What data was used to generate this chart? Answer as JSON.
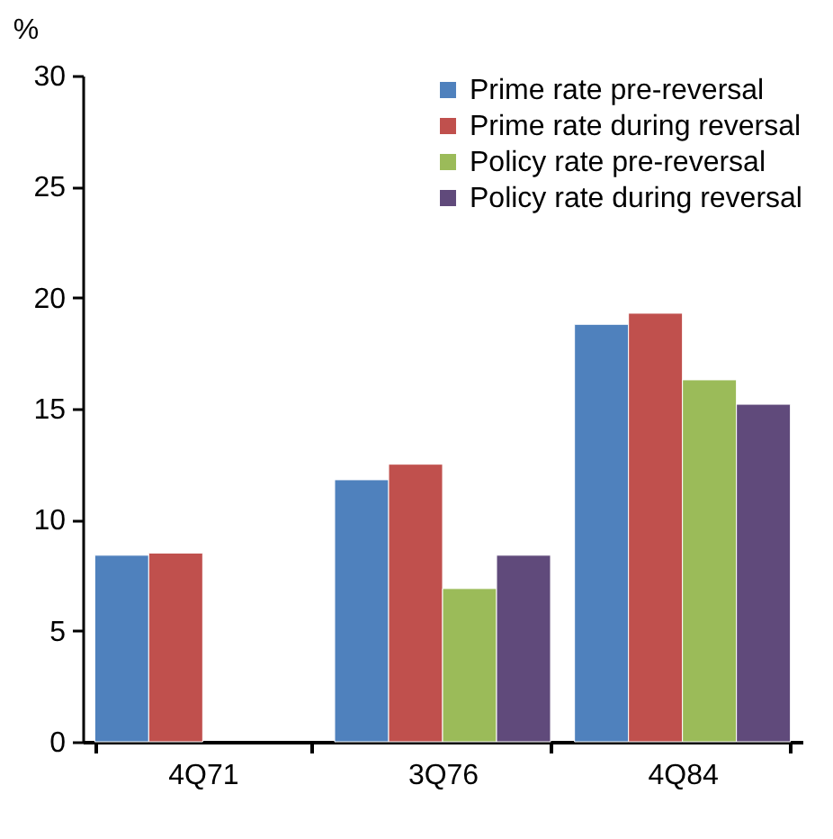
{
  "chart_data": {
    "type": "bar",
    "ylabel": "%",
    "categories": [
      "4Q71",
      "3Q76",
      "4Q84"
    ],
    "series": [
      {
        "name": "Prime rate pre-reversal",
        "color": "#4f81bd",
        "values": [
          8.4,
          11.8,
          18.8
        ]
      },
      {
        "name": "Prime rate during reversal",
        "color": "#c0504d",
        "values": [
          8.5,
          12.5,
          19.3
        ]
      },
      {
        "name": "Policy rate pre-reversal",
        "color": "#9bbb59",
        "values": [
          null,
          6.9,
          16.3
        ]
      },
      {
        "name": "Policy rate during reversal",
        "color": "#604a7b",
        "values": [
          null,
          8.4,
          15.2
        ]
      }
    ],
    "ylim": [
      0,
      30
    ],
    "yticks": [
      0,
      5,
      10,
      15,
      20,
      25,
      30
    ],
    "grid": false,
    "legend": "top right"
  }
}
